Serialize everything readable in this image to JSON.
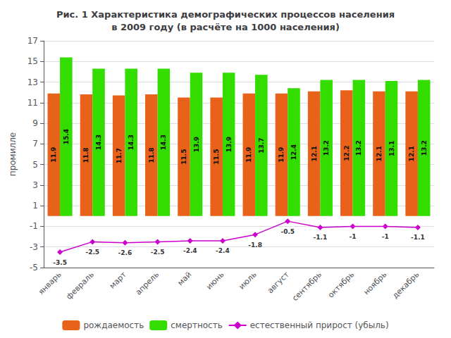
{
  "chart_data": {
    "type": "bar",
    "title": "Рис. 1 Характеристика демографических процессов населения\nв 2009 году (в расчёте на 1000 населения)",
    "ylabel": "промилле",
    "categories": [
      "январь",
      "февраль",
      "март",
      "апрель",
      "май",
      "июнь",
      "июль",
      "август",
      "сентябрь",
      "октябрь",
      "ноябрь",
      "декабрь"
    ],
    "series": [
      {
        "name": "рождаемость",
        "type": "bar",
        "color": "#E8621A",
        "values": [
          11.9,
          11.8,
          11.7,
          11.8,
          11.5,
          11.5,
          11.9,
          11.9,
          12.1,
          12.2,
          12.1,
          12.1
        ]
      },
      {
        "name": "смертность",
        "type": "bar",
        "color": "#33DD00",
        "values": [
          15.4,
          14.3,
          14.3,
          14.3,
          13.9,
          13.9,
          13.7,
          12.4,
          13.2,
          13.2,
          13.1,
          13.2
        ]
      },
      {
        "name": "естественный прирост (убыль)",
        "type": "line",
        "color": "#CC00CC",
        "marker": "diamond",
        "values": [
          -3.5,
          -2.5,
          -2.6,
          -2.5,
          -2.4,
          -2.4,
          -1.8,
          -0.5,
          -1.1,
          -1.0,
          -1.0,
          -1.1
        ],
        "value_labels": [
          "-3.5",
          "-2.5",
          "-2.6",
          "-2.5",
          "-2.4",
          "-2.4",
          "-1.8",
          "-0.5",
          "-1.1",
          "-1",
          "-1",
          "-1.1"
        ]
      }
    ],
    "ylim": [
      -5,
      17
    ],
    "yticks": [
      -5,
      -3,
      -1,
      1,
      3,
      5,
      7,
      9,
      11,
      13,
      15,
      17
    ],
    "grid": true,
    "legend": "bottom",
    "data_labels": true
  }
}
